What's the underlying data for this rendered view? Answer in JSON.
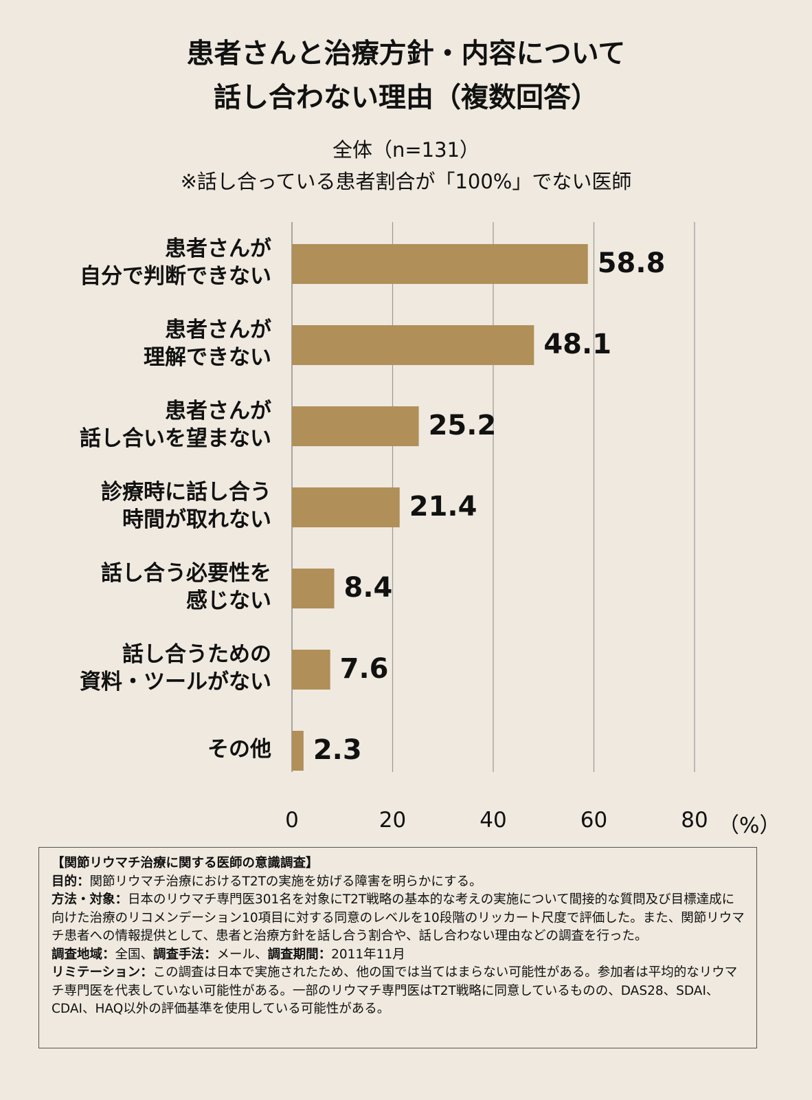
{
  "chart_data": {
    "type": "bar",
    "orientation": "horizontal",
    "title": "患者さんと治療方針・内容について\n話し合わない理由（複数回答）",
    "subtitle": [
      "全体（n=131）",
      "※話し合っている患者割合が「100%」でない医師"
    ],
    "categories": [
      "患者さんが\n自分で判断できない",
      "患者さんが\n理解できない",
      "患者さんが\n話し合いを望まない",
      "診療時に話し合う\n時間が取れない",
      "話し合う必要性を\n感じない",
      "話し合うための\n資料・ツールがない",
      "その他"
    ],
    "values": [
      58.8,
      48.1,
      25.2,
      21.4,
      8.4,
      7.6,
      2.3
    ],
    "value_labels": [
      "58.8",
      "48.1",
      "25.2",
      "21.4",
      "8.4",
      "7.6",
      "2.3"
    ],
    "xlim": [
      0,
      80
    ],
    "xticks": [
      "0",
      "20",
      "40",
      "60",
      "80"
    ],
    "xunit": "（%）",
    "grid": true,
    "bar_color": "#b08f58"
  },
  "note": {
    "heading": "【関節リウマチ治療に関する医師の意識調査】",
    "items": [
      {
        "label": "目的：",
        "text": "関節リウマチ治療におけるT2Tの実施を妨げる障害を明らかにする。"
      },
      {
        "label": "方法・対象：",
        "text": "日本のリウマチ専門医301名を対象にT2T戦略の基本的な考えの実施について間接的な質問及び目標達成に向けた治療のリコメンデーション10項目に対する同意のレベルを10段階のリッカート尺度で評価した。また、関節リウマチ患者への情報提供として、患者と治療方針を話し合う割合や、話し合わない理由などの調査を行った。"
      },
      {
        "label": "調査地域：",
        "text": "全国、",
        "label2": "調査手法：",
        "text2": "メール、",
        "label3": "調査期間：",
        "text3": "2011年11月"
      },
      {
        "label": "リミテーション：",
        "text": "この調査は日本で実施されたため、他の国では当てはまらない可能性がある。参加者は平均的なリウマチ専門医を代表していない可能性がある。一部のリウマチ専門医はT2T戦略に同意しているものの、DAS28、SDAI、CDAI、HAQ以外の評価基準を使用している可能性がある。"
      }
    ]
  }
}
